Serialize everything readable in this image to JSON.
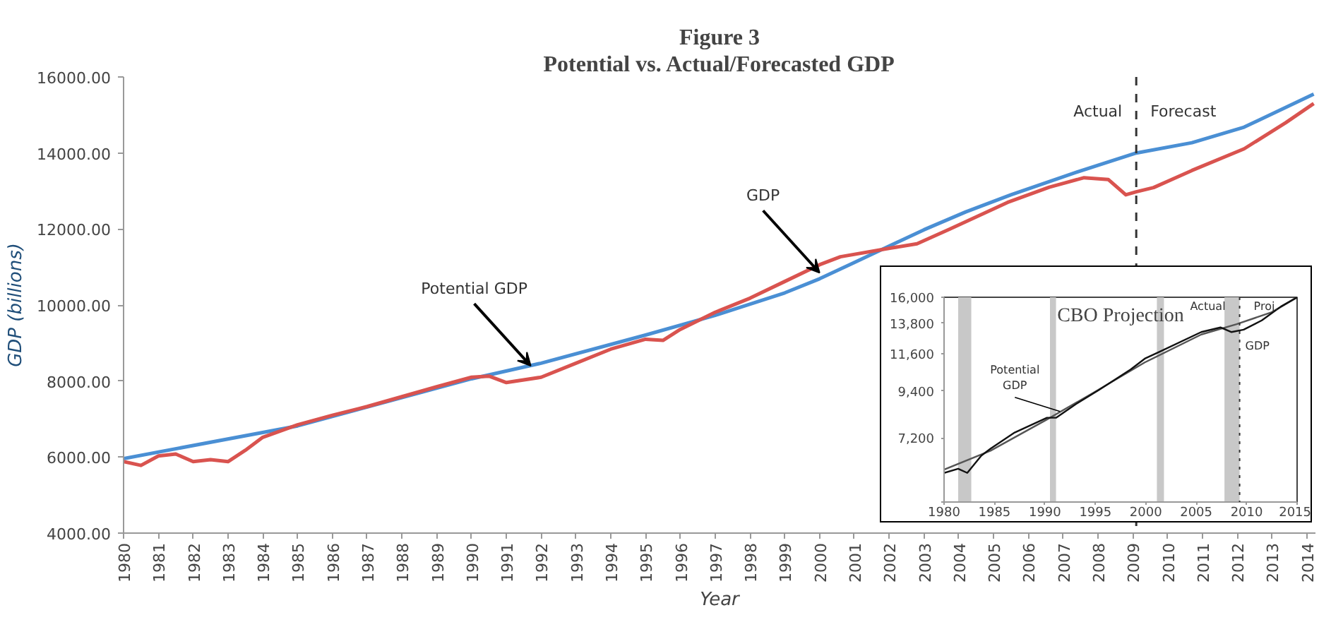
{
  "chart_data": [
    {
      "type": "line",
      "title": "Figure 3",
      "subtitle": "Potential vs. Actual/Forecasted GDP",
      "xlabel": "Year",
      "ylabel": "GDP (billions)",
      "xlim": [
        1980,
        2014.25
      ],
      "xticks": [
        1980,
        1981,
        1982,
        1983,
        1984,
        1985,
        1986,
        1987,
        1988,
        1989,
        1990,
        1991,
        1992,
        1993,
        1994,
        1995,
        1996,
        1997,
        1998,
        1999,
        2000,
        2001,
        2002,
        2003,
        2004,
        2005,
        2006,
        2007,
        2008,
        2009,
        2010,
        2011,
        2012,
        2013,
        2014
      ],
      "ylim": [
        4000,
        16000
      ],
      "yticks": [
        {
          "value": 4000,
          "label": "4000.00"
        },
        {
          "value": 6000,
          "label": "6000.00"
        },
        {
          "value": 8000,
          "label": "8000.00"
        },
        {
          "value": 10000,
          "label": "10000.00"
        },
        {
          "value": 12000,
          "label": "12000.00"
        },
        {
          "value": 14000,
          "label": "14000.00"
        },
        {
          "value": 16000,
          "label": "16000.00"
        }
      ],
      "grid": false,
      "marker": "none",
      "line_style": "solid",
      "series": [
        {
          "color": "#4a8fd4",
          "x": [
            1980,
            1985,
            1990,
            1992,
            1995,
            1997,
            1999,
            2000,
            2001,
            2002,
            2003,
            2004.2,
            2005.5,
            2007.4,
            2009.1,
            2010.7,
            2012.2,
            2014.2
          ],
          "values": [
            5960,
            6820,
            8060,
            8470,
            9210,
            9730,
            10320,
            10690,
            11120,
            11550,
            11980,
            12450,
            12900,
            13500,
            14000,
            14270,
            14680,
            15550
          ]
        },
        {
          "color": "#d9534f",
          "x": [
            1980,
            1980.5,
            1981,
            1981.5,
            1982,
            1982.5,
            1983,
            1983.5,
            1984,
            1985,
            1986,
            1987,
            1988,
            1989,
            1990,
            1990.5,
            1991,
            1992,
            1993,
            1994,
            1995,
            1995.5,
            1996,
            1997,
            1998,
            1999,
            2000,
            2000.6,
            2002.05,
            2002.8,
            2003.75,
            2005.4,
            2006.6,
            2007.6,
            2008.3,
            2008.8,
            2009.1,
            2009.6,
            2010.7,
            2012.2,
            2013.4,
            2014.2
          ],
          "values": [
            5880,
            5780,
            6030,
            6080,
            5880,
            5930,
            5880,
            6180,
            6520,
            6850,
            7100,
            7330,
            7590,
            7850,
            8100,
            8130,
            7960,
            8100,
            8470,
            8840,
            9100,
            9070,
            9360,
            9810,
            10180,
            10620,
            11060,
            11270,
            11500,
            11610,
            12000,
            12700,
            13100,
            13350,
            13300,
            12900,
            12980,
            13090,
            13540,
            14110,
            14800,
            15300
          ]
        }
      ],
      "ref_lines": [
        {
          "axis": "x",
          "value": 2009.1,
          "color": "#333333",
          "line_style": "dashed"
        }
      ],
      "annotations": [
        {
          "text": "Potential GDP",
          "x": 1991.7,
          "y": 8400
        },
        {
          "text": "GDP",
          "x": 2000,
          "y": 10850
        },
        "Actual",
        "Forecast"
      ]
    },
    {
      "type": "line",
      "log": true,
      "xlim": [
        1980,
        2015
      ],
      "xticks": [
        1980,
        1985,
        1990,
        1995,
        2000,
        2005,
        2010,
        2015
      ],
      "ylim": [
        5000,
        16000
      ],
      "yticks": [
        {
          "value": 5000,
          "label": null
        },
        {
          "value": 7200,
          "label": "7,200"
        },
        {
          "value": 9400,
          "label": "9,400"
        },
        {
          "value": 11600,
          "label": "11,600"
        },
        {
          "value": 13800,
          "label": "13,800"
        },
        {
          "value": 16000,
          "label": "16,000"
        }
      ],
      "grid": false,
      "marker": "none",
      "line_style": "solid",
      "series": [
        {
          "color": "#555555",
          "x": [
            1980,
            1984.6,
            1990.2,
            1994.8,
            1999.9,
            2005.5,
            2009,
            2012.5,
            2015
          ],
          "values": [
            6010,
            6690,
            7990,
            9300,
            11050,
            12950,
            13730,
            14700,
            16000
          ]
        },
        {
          "color": "#111111",
          "x": [
            1980,
            1981.4,
            1982.3,
            1983.7,
            1984.6,
            1987,
            1990.2,
            1991.1,
            1993,
            1995.3,
            1998.5,
            1999.9,
            2001.3,
            2005.5,
            2007.4,
            2008.5,
            2009.7,
            2011.5,
            2013.4,
            2015
          ],
          "values": [
            5900,
            6040,
            5900,
            6510,
            6770,
            7420,
            8070,
            8070,
            8700,
            9430,
            10620,
            11290,
            11720,
            13130,
            13480,
            13130,
            13310,
            14030,
            15180,
            16000
          ]
        }
      ],
      "bands": [
        {
          "axis": "x",
          "from": 1981.4,
          "to": 1982.7,
          "color": "#c8c8c8"
        },
        {
          "axis": "x",
          "from": 1990.5,
          "to": 1991.1,
          "color": "#c8c8c8"
        },
        {
          "axis": "x",
          "from": 2001.1,
          "to": 2001.8,
          "color": "#c8c8c8"
        },
        {
          "axis": "x",
          "from": 2007.8,
          "to": 2009.3,
          "color": "#c8c8c8"
        }
      ],
      "ref_lines": [
        {
          "axis": "x",
          "value": 2009.3,
          "color": "#333333",
          "line_style": "dotted"
        }
      ],
      "annotations": [
        "CBO Projection",
        "GDP",
        {
          "text": "Potential\nGDP",
          "x": 1991.5,
          "y": 8360
        },
        "Actual",
        "Proj."
      ]
    }
  ]
}
